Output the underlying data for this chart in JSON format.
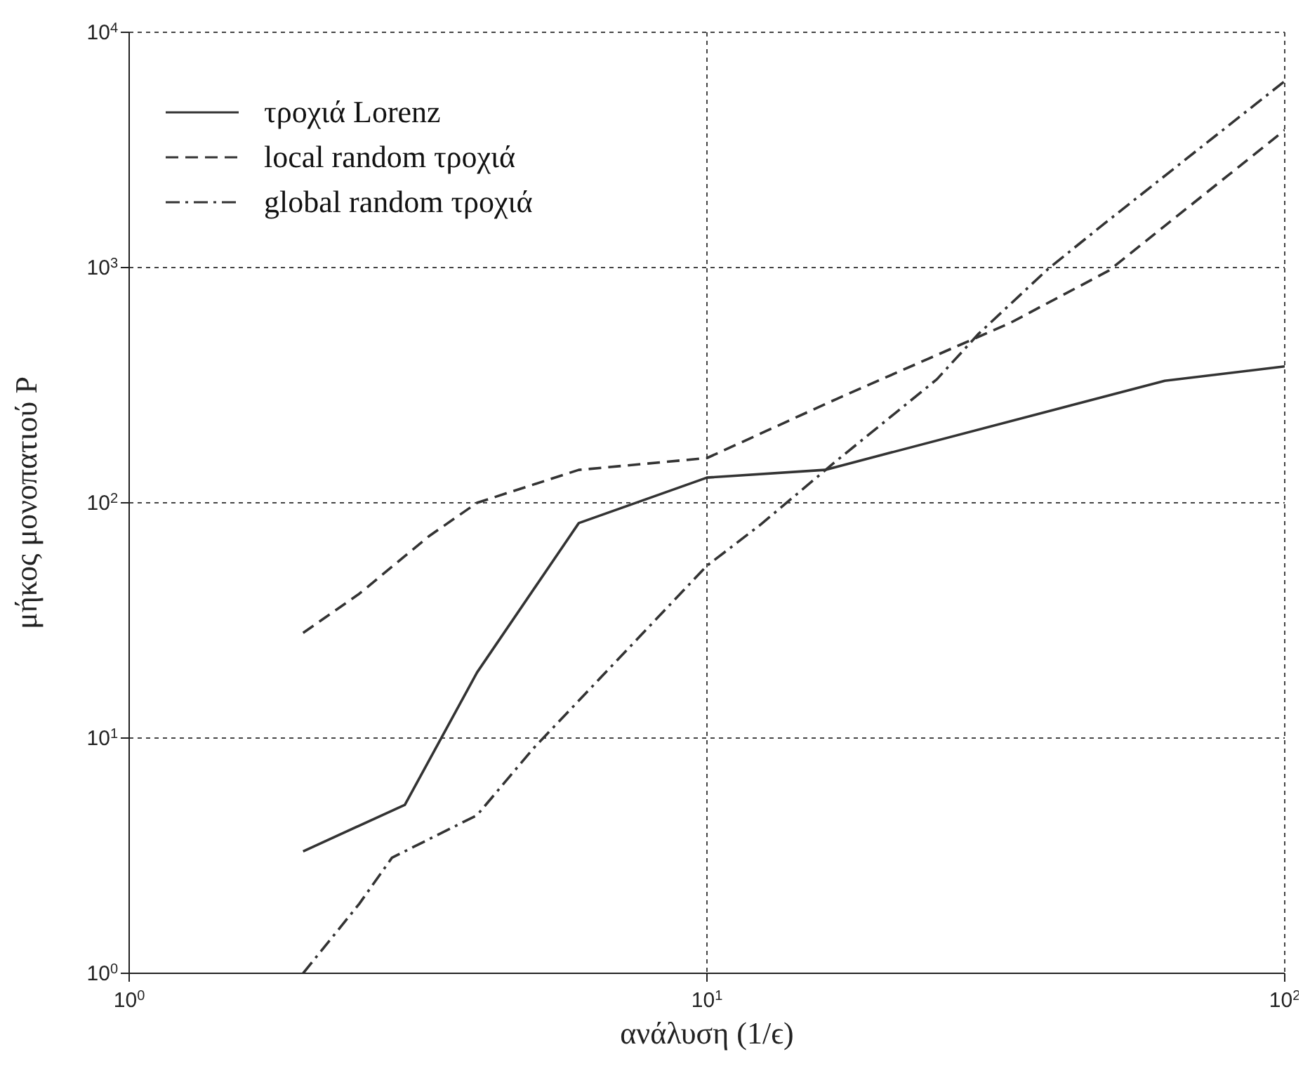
{
  "chart_data": {
    "type": "line",
    "xlabel": "ανάλυση (1/ϵ)",
    "ylabel": "μήκος μονοπατιού P",
    "log": "xy",
    "grid": true,
    "legend": "top left",
    "xlim": [
      1,
      100
    ],
    "xticks": [
      {
        "value": 1,
        "label": "10$^{0}$"
      },
      {
        "value": 10,
        "label": "10$^{1}$"
      },
      {
        "value": 100,
        "label": "10$^{2}$"
      }
    ],
    "ylim": [
      1,
      10000
    ],
    "yticks": [
      {
        "value": 1,
        "label": "10$^{0}$"
      },
      {
        "value": 10,
        "label": "10$^{1}$"
      },
      {
        "value": 100,
        "label": "10$^{2}$"
      },
      {
        "value": 1000,
        "label": "10$^{3}$"
      },
      {
        "value": 10000,
        "label": "10$^{4}$"
      }
    ],
    "series": [
      {
        "name": "τροχιά Lorenz",
        "color": "#333333",
        "line_style": "solid",
        "x": [
          2,
          3,
          4,
          6,
          10,
          16,
          62,
          100
        ],
        "values": [
          3.3,
          5.2,
          19,
          82,
          128,
          138,
          330,
          380
        ]
      },
      {
        "name": "local random τροχιά",
        "color": "#333333",
        "line_style": "dashed",
        "x": [
          2,
          2.5,
          3.3,
          4,
          6,
          10,
          16.8,
          33.6,
          49.6,
          100
        ],
        "values": [
          28,
          41,
          72,
          100,
          138,
          155,
          277,
          584,
          970,
          3840
        ]
      },
      {
        "name": "global random τροχιά",
        "color": "#333333",
        "line_style": "dashdot",
        "x": [
          2,
          2.5,
          2.85,
          4,
          5,
          10,
          12.4,
          16.6,
          25,
          29.5,
          39,
          49.5,
          100
        ],
        "values": [
          1,
          1.97,
          3.1,
          4.7,
          9,
          54,
          81,
          148,
          335,
          522,
          990,
          1585,
          6200
        ]
      }
    ]
  }
}
